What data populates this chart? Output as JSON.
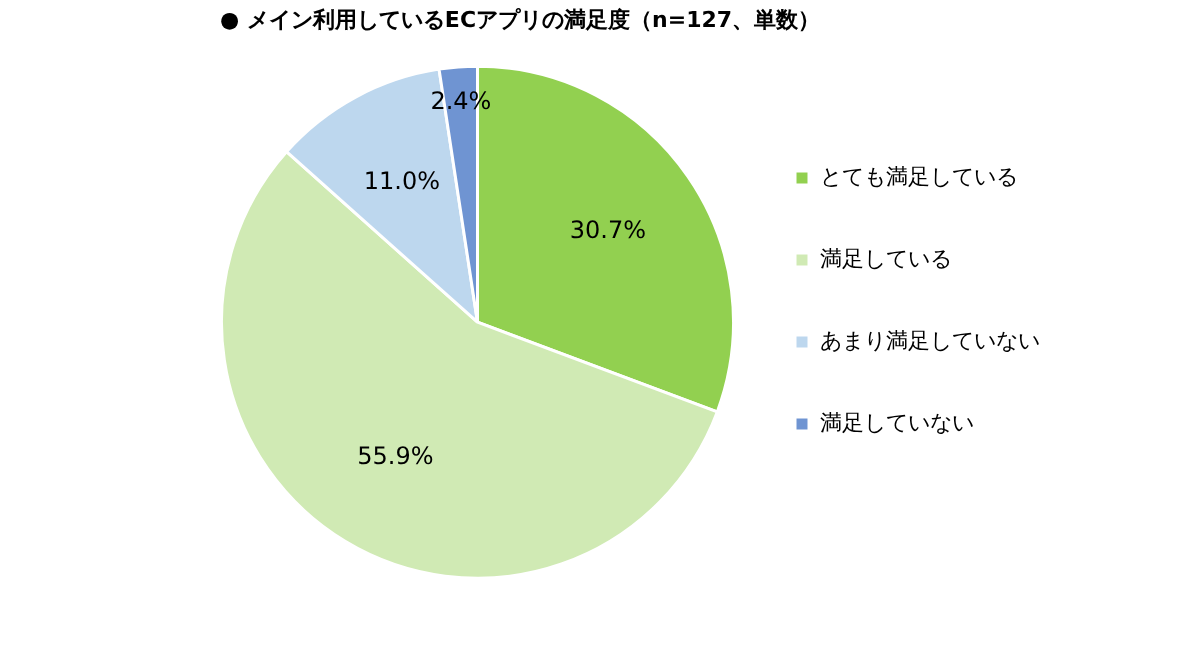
{
  "chart_data": {
    "type": "pie",
    "title": "● メイン利用しているECアプリの満足度（n=127、単数）",
    "categories": [
      "とても満足している",
      "満足している",
      "あまり満足していない",
      "満足していない"
    ],
    "values": [
      30.7,
      55.9,
      11.0,
      2.4
    ],
    "colors": [
      "#92d050",
      "#d0eab4",
      "#bdd7ee",
      "#6f94d2"
    ],
    "value_labels": [
      "30.7%",
      "55.9%",
      "11.0%",
      "2.4%"
    ],
    "legend": "right"
  }
}
